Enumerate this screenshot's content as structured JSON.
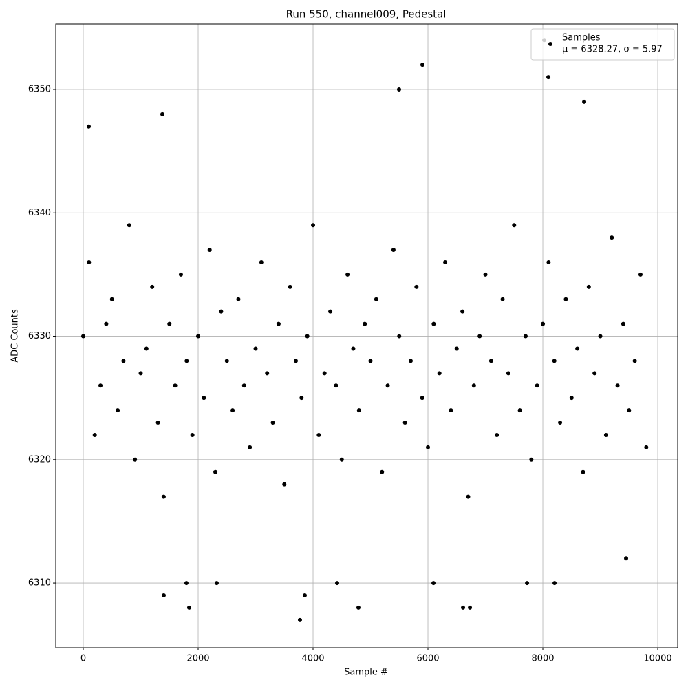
{
  "chart_data": {
    "type": "scatter",
    "title": "Run 550, channel009, Pedestal",
    "x_label": "Sample #",
    "y_label": "ADC Counts",
    "xlim": [
      -479,
      10347
    ],
    "ylim": [
      6304.76,
      6355.3
    ],
    "xticks": [
      0,
      2000,
      4000,
      6000,
      8000,
      10000
    ],
    "yticks": [
      6310,
      6320,
      6330,
      6340,
      6350
    ],
    "grid": true,
    "legend": "upper right",
    "legend_note": "μ = 6328.27, σ = 5.97",
    "series": [
      {
        "name": "Samples",
        "color": "#000000",
        "x": [
          0,
          100,
          200,
          300,
          400,
          500,
          600,
          700,
          800,
          900,
          1000,
          1100,
          1200,
          1300,
          1400,
          1500,
          1600,
          1700,
          1800,
          1900,
          2000,
          2100,
          2200,
          2300,
          2400,
          2500,
          2600,
          2700,
          2800,
          2900,
          3000,
          3100,
          3200,
          3300,
          3400,
          3500,
          3600,
          3700,
          3800,
          3900,
          4000,
          4100,
          4200,
          4300,
          4400,
          4500,
          4600,
          4700,
          4800,
          4900,
          5000,
          5100,
          5200,
          5300,
          5400,
          5500,
          5600,
          5700,
          5800,
          5900,
          6000,
          6100,
          6200,
          6300,
          6400,
          6500,
          6600,
          6700,
          6800,
          6900,
          7000,
          7100,
          7200,
          7300,
          7400,
          7500,
          7600,
          7700,
          7800,
          7900,
          8000,
          8100,
          8200,
          8300,
          8400,
          8500,
          8600,
          8700,
          8800,
          8900,
          9000,
          9100,
          9200,
          9300,
          9400,
          9500,
          9600,
          9700,
          9800,
          1844,
          3772,
          5497,
          5904,
          8024,
          8096,
          8719,
          1377,
          96,
          6611,
          6731,
          4790,
          8204,
          7725,
          6096,
          4419,
          2323,
          1796,
          1401,
          3856,
          9449
        ],
        "y": [
          6330,
          6336,
          6322,
          6326,
          6331,
          6333,
          6324,
          6328,
          6339,
          6320,
          6327,
          6329,
          6334,
          6323,
          6317,
          6331,
          6326,
          6335,
          6328,
          6322,
          6330,
          6325,
          6337,
          6319,
          6332,
          6328,
          6324,
          6333,
          6326,
          6321,
          6329,
          6336,
          6327,
          6323,
          6331,
          6318,
          6334,
          6328,
          6325,
          6330,
          6339,
          6322,
          6327,
          6332,
          6326,
          6320,
          6335,
          6329,
          6324,
          6331,
          6328,
          6333,
          6319,
          6326,
          6337,
          6330,
          6323,
          6328,
          6334,
          6325,
          6321,
          6331,
          6327,
          6336,
          6324,
          6329,
          6332,
          6317,
          6326,
          6330,
          6335,
          6328,
          6322,
          6333,
          6327,
          6339,
          6324,
          6330,
          6320,
          6326,
          6331,
          6336,
          6328,
          6323,
          6333,
          6325,
          6329,
          6319,
          6334,
          6327,
          6330,
          6322,
          6338,
          6326,
          6331,
          6324,
          6328,
          6335,
          6321,
          6308,
          6307,
          6350,
          6352,
          6354,
          6351,
          6349,
          6348,
          6347,
          6308,
          6308,
          6308,
          6310,
          6310,
          6310,
          6310,
          6310,
          6310,
          6309,
          6309,
          6312
        ]
      }
    ]
  }
}
